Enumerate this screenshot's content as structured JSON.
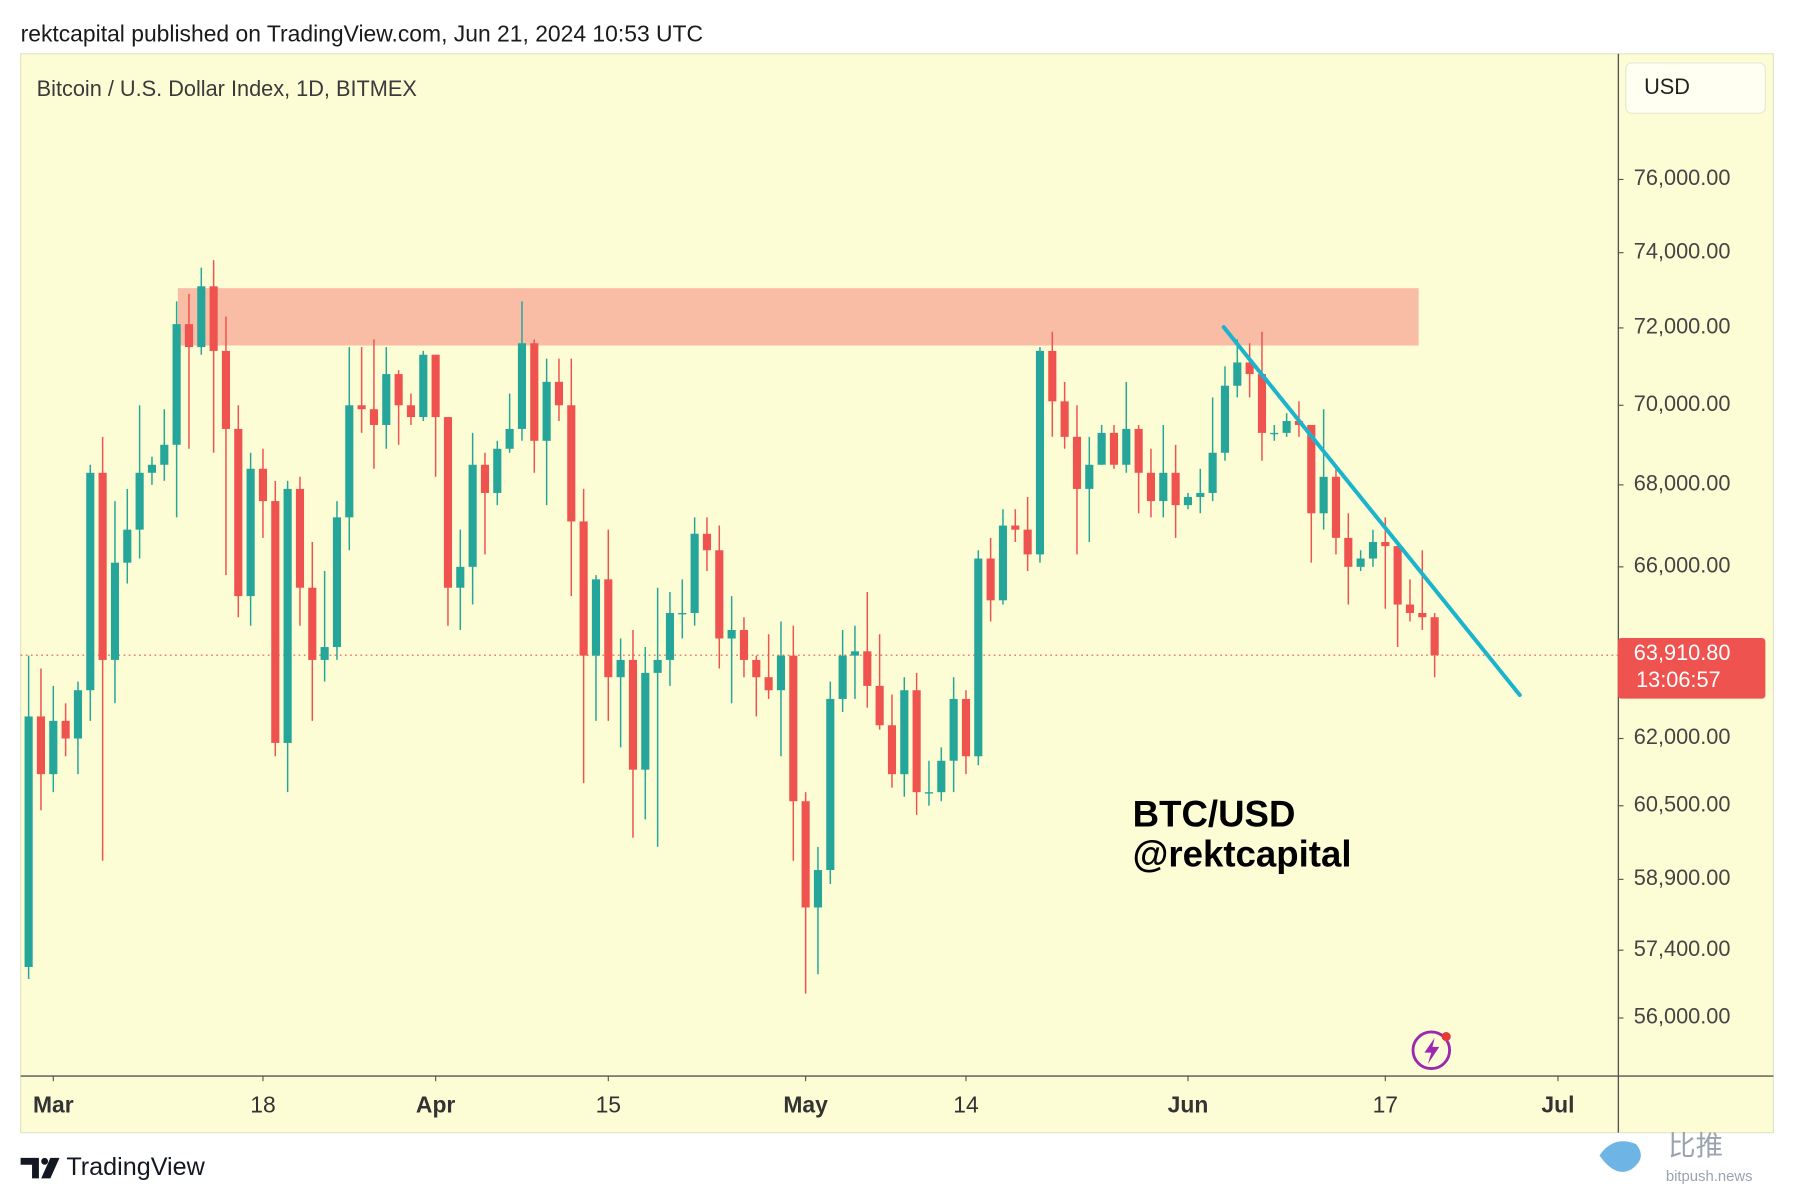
{
  "header": "rektcapital published on TradingView.com, Jun 21, 2024 10:53 UTC",
  "footer": {
    "brand": "TradingView",
    "watermark": "比推",
    "watermark_site": "bitpush.news"
  },
  "chart_data": {
    "type": "candlestick",
    "title": "Bitcoin / U.S. Dollar Index, 1D, BITMEX",
    "currency": "USD",
    "log_scale": true,
    "grid": false,
    "up_color": "#26a69a",
    "down_color": "#ef5350",
    "annotation": [
      "BTC/USD",
      "@rektcapital"
    ],
    "x": [
      "Feb 28",
      "Feb 29",
      "Mar 1",
      "Mar 2",
      "Mar 3",
      "Mar 4",
      "Mar 5",
      "Mar 6",
      "Mar 7",
      "Mar 8",
      "Mar 9",
      "Mar 10",
      "Mar 11",
      "Mar 12",
      "Mar 13",
      "Mar 14",
      "Mar 15",
      "Mar 16",
      "Mar 17",
      "Mar 18",
      "Mar 19",
      "Mar 20",
      "Mar 21",
      "Mar 22",
      "Mar 23",
      "Mar 24",
      "Mar 25",
      "Mar 26",
      "Mar 27",
      "Mar 28",
      "Mar 29",
      "Mar 30",
      "Mar 31",
      "Apr 1",
      "Apr 2",
      "Apr 3",
      "Apr 4",
      "Apr 5",
      "Apr 6",
      "Apr 7",
      "Apr 8",
      "Apr 9",
      "Apr 10",
      "Apr 11",
      "Apr 12",
      "Apr 13",
      "Apr 14",
      "Apr 15",
      "Apr 16",
      "Apr 17",
      "Apr 18",
      "Apr 19",
      "Apr 20",
      "Apr 21",
      "Apr 22",
      "Apr 23",
      "Apr 24",
      "Apr 25",
      "Apr 26",
      "Apr 27",
      "Apr 28",
      "Apr 29",
      "Apr 30",
      "May 1",
      "May 2",
      "May 3",
      "May 4",
      "May 5",
      "May 6",
      "May 7",
      "May 8",
      "May 9",
      "May 10",
      "May 11",
      "May 12",
      "May 13",
      "May 14",
      "May 15",
      "May 16",
      "May 17",
      "May 18",
      "May 19",
      "May 20",
      "May 21",
      "May 22",
      "May 23",
      "May 24",
      "May 25",
      "May 26",
      "May 27",
      "May 28",
      "May 29",
      "May 30",
      "May 31",
      "Jun 1",
      "Jun 2",
      "Jun 3",
      "Jun 4",
      "Jun 5",
      "Jun 6",
      "Jun 7",
      "Jun 8",
      "Jun 9",
      "Jun 10",
      "Jun 11",
      "Jun 12",
      "Jun 13",
      "Jun 14",
      "Jun 15",
      "Jun 16",
      "Jun 17",
      "Jun 18",
      "Jun 19",
      "Jun 20",
      "Jun 21"
    ],
    "open": [
      57050,
      62500,
      61200,
      62400,
      62000,
      63100,
      68300,
      63800,
      66100,
      66900,
      68300,
      68500,
      69000,
      72100,
      71500,
      73100,
      71400,
      69400,
      65300,
      68400,
      67600,
      61900,
      67900,
      65500,
      63800,
      64100,
      67200,
      70000,
      69900,
      69500,
      70800,
      70000,
      69700,
      71300,
      69700,
      65500,
      66000,
      68500,
      67800,
      68900,
      69400,
      71600,
      69100,
      70600,
      70000,
      67100,
      63900,
      65700,
      63400,
      63800,
      61300,
      63500,
      63800,
      64900,
      64900,
      66800,
      66400,
      64300,
      64500,
      63800,
      63400,
      63100,
      63900,
      60600,
      58300,
      59100,
      62900,
      63900,
      64000,
      63200,
      62300,
      61200,
      63100,
      60800,
      60800,
      61500,
      62900,
      61600,
      66200,
      65200,
      67000,
      66900,
      66300,
      71400,
      70100,
      69200,
      67900,
      68500,
      69300,
      68500,
      69400,
      68300,
      67600,
      68300,
      67500,
      67700,
      67800,
      68800,
      70500,
      71100,
      70800,
      69300,
      69300,
      69600,
      69500,
      67300,
      68200,
      66700,
      66000,
      66200,
      66600,
      66500,
      65100,
      64900,
      64800
    ],
    "high": [
      63900,
      63600,
      63200,
      62800,
      63300,
      68500,
      69200,
      67600,
      67900,
      70000,
      68700,
      69900,
      72700,
      72900,
      73600,
      73800,
      72300,
      70000,
      68800,
      68900,
      68100,
      68100,
      68200,
      66600,
      65900,
      67600,
      71500,
      71500,
      71700,
      71500,
      70900,
      70300,
      71400,
      71300,
      69700,
      66900,
      69300,
      68800,
      69100,
      70300,
      72700,
      71700,
      71200,
      71200,
      71200,
      67900,
      65800,
      66900,
      64300,
      64500,
      64100,
      65500,
      65400,
      65700,
      67200,
      67200,
      67000,
      65300,
      64800,
      63900,
      64400,
      64700,
      64600,
      60800,
      59600,
      63300,
      64500,
      64600,
      65400,
      64400,
      63000,
      63400,
      63500,
      61500,
      61800,
      63400,
      63100,
      66400,
      66700,
      67400,
      67400,
      67700,
      71500,
      71900,
      70600,
      70000,
      69200,
      69500,
      69500,
      70600,
      69500,
      68900,
      69500,
      69000,
      67800,
      68400,
      70200,
      71000,
      71700,
      71600,
      71900,
      69500,
      69800,
      70100,
      69500,
      69900,
      68400,
      67300,
      66400,
      66900,
      67200,
      66500,
      65700,
      66400,
      64900
    ],
    "low": [
      56800,
      60400,
      60800,
      61600,
      61200,
      62400,
      59300,
      62800,
      65600,
      66200,
      68000,
      68100,
      67200,
      68900,
      71300,
      68800,
      65800,
      64800,
      64600,
      66700,
      61600,
      60800,
      64600,
      62400,
      63300,
      63800,
      66400,
      69300,
      68400,
      68900,
      69000,
      69500,
      69600,
      68200,
      64600,
      64500,
      65100,
      66300,
      67500,
      68800,
      69100,
      68300,
      67500,
      69600,
      65300,
      61000,
      62400,
      62400,
      61800,
      59800,
      60200,
      59600,
      63200,
      64300,
      64600,
      65900,
      63600,
      62800,
      63400,
      62500,
      62900,
      61600,
      59300,
      56500,
      56900,
      58800,
      62600,
      62900,
      62700,
      62200,
      60900,
      60700,
      60300,
      60500,
      60600,
      60800,
      61200,
      61400,
      64700,
      65100,
      66600,
      65900,
      66100,
      69200,
      68900,
      66300,
      66600,
      68500,
      68400,
      68300,
      67300,
      67200,
      67200,
      66700,
      67400,
      67300,
      67600,
      68600,
      70200,
      70200,
      68600,
      69100,
      69200,
      69200,
      66100,
      66900,
      66300,
      65100,
      65900,
      66000,
      65000,
      64100,
      64700,
      64500,
      63400
    ],
    "close": [
      62500,
      61200,
      62400,
      62000,
      63100,
      68300,
      63800,
      66100,
      66900,
      68300,
      68500,
      69000,
      72100,
      71500,
      73100,
      71400,
      69400,
      65300,
      68400,
      67600,
      61900,
      67900,
      65500,
      63800,
      64100,
      67200,
      70000,
      69900,
      69500,
      70800,
      70000,
      69700,
      71300,
      69700,
      65500,
      66000,
      68500,
      67800,
      68900,
      69400,
      71600,
      69100,
      70600,
      70000,
      67100,
      63900,
      65700,
      63400,
      63800,
      61300,
      63500,
      63800,
      64900,
      64900,
      66800,
      66400,
      64300,
      64500,
      63800,
      63400,
      63100,
      63900,
      60600,
      58300,
      59100,
      62900,
      63900,
      64000,
      63200,
      62300,
      61200,
      63100,
      60800,
      60800,
      61500,
      62900,
      61600,
      66200,
      65200,
      67000,
      66900,
      66300,
      71400,
      70100,
      69200,
      67900,
      68500,
      69300,
      68500,
      69400,
      68300,
      67600,
      68300,
      67500,
      67700,
      67800,
      68800,
      70500,
      71100,
      70800,
      69300,
      69300,
      69600,
      69500,
      67300,
      68200,
      66700,
      66000,
      66200,
      66600,
      66500,
      65100,
      64900,
      64800,
      63910.8
    ],
    "last_price": {
      "value": 63910.8,
      "label": "63,910.80"
    },
    "countdown": "13:06:57",
    "zone": {
      "x": [
        12.1,
        112.7
      ],
      "y": [
        71540,
        73050
      ],
      "color": "#f9bca5"
    },
    "trendline": {
      "x": [
        96.9,
        120.9
      ],
      "y": [
        72020,
        62990
      ],
      "color": "#1cb3cc"
    },
    "xlim": [
      -0.65,
      128.85
    ],
    "xticks": [
      {
        "value": 2,
        "label": "Mar"
      },
      {
        "value": 19,
        "label": "18"
      },
      {
        "value": 33,
        "label": "Apr"
      },
      {
        "value": 47,
        "label": "15"
      },
      {
        "value": 63,
        "label": "May"
      },
      {
        "value": 76,
        "label": "14"
      },
      {
        "value": 94,
        "label": "Jun"
      },
      {
        "value": 110,
        "label": "17"
      },
      {
        "value": 124,
        "label": "Jul"
      }
    ],
    "ylim": [
      54840,
      79560
    ],
    "yticks": [
      {
        "value": 56000,
        "label": "56,000.00"
      },
      {
        "value": 57400,
        "label": "57,400.00"
      },
      {
        "value": 58900,
        "label": "58,900.00"
      },
      {
        "value": 60500,
        "label": "60,500.00"
      },
      {
        "value": 62000,
        "label": "62,000.00"
      },
      {
        "value": 66000,
        "label": "66,000.00"
      },
      {
        "value": 68000,
        "label": "68,000.00"
      },
      {
        "value": 70000,
        "label": "70,000.00"
      },
      {
        "value": 72000,
        "label": "72,000.00"
      },
      {
        "value": 74000,
        "label": "74,000.00"
      },
      {
        "value": 76000,
        "label": "76,000.00"
      }
    ]
  }
}
